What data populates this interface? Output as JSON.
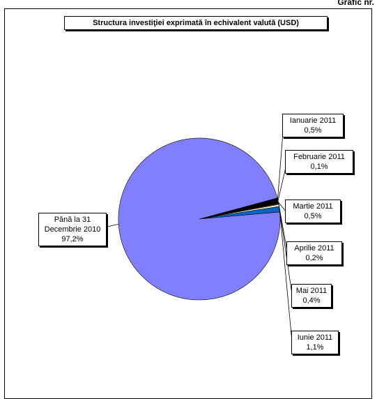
{
  "header": {
    "text": "Grafic nr."
  },
  "chart_data": {
    "type": "pie",
    "title": "Structura investiţiei exprimată în echivalent valută (USD)",
    "slices": [
      {
        "label": "Până la 31 Decembrie 2010",
        "value_text": "97,2%",
        "value": 97.2,
        "color": "#8080ff"
      },
      {
        "label": "Ianuarie 2011",
        "value_text": "0,5%",
        "value": 0.5,
        "color": "#000000"
      },
      {
        "label": "Februarie 2011",
        "value_text": "0,1%",
        "value": 0.1,
        "color": "#c0c0c0"
      },
      {
        "label": "Martie 2011",
        "value_text": "0,5%",
        "value": 0.5,
        "color": "#000000"
      },
      {
        "label": "Aprilie 2011",
        "value_text": "0,2%",
        "value": 0.2,
        "color": "#993366"
      },
      {
        "label": "Mai 2011",
        "value_text": "0,4%",
        "value": 0.4,
        "color": "#ffffcc"
      },
      {
        "label": "Iunie 2011",
        "value_text": "1,1%",
        "value": 1.1,
        "color": "#0066cc"
      }
    ]
  }
}
